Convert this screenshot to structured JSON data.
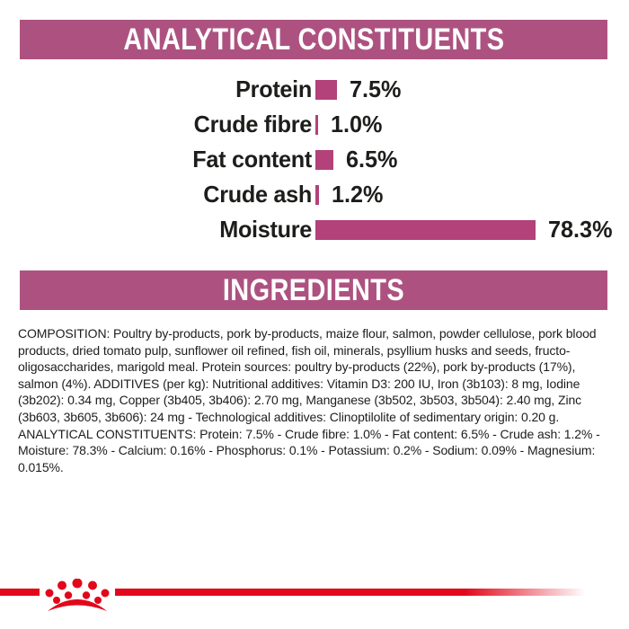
{
  "colors": {
    "header_bg": "#ad5280",
    "bar_fill": "#b24279",
    "brand_red": "#e2071a",
    "text": "#1d1d1b"
  },
  "analytical_section": {
    "title": "ANALYTICAL CONSTITUENTS",
    "chart_data": {
      "type": "bar",
      "orientation": "horizontal",
      "categories": [
        "Protein",
        "Crude fibre",
        "Fat content",
        "Crude ash",
        "Moisture"
      ],
      "values": [
        7.5,
        1.0,
        6.5,
        1.2,
        78.3
      ],
      "value_labels": [
        "7.5%",
        "1.0%",
        "6.5%",
        "1.2%",
        "78.3%"
      ],
      "unit": "%",
      "xlim": [
        0,
        78.3
      ],
      "bar_color": "#b24279",
      "title": "ANALYTICAL CONSTITUENTS",
      "legend": "none",
      "grid": false
    }
  },
  "ingredients_section": {
    "title": "INGREDIENTS",
    "body": "COMPOSITION: Poultry by-products, pork by-products, maize flour, salmon, powder cellulose, pork blood products, dried tomato pulp, sunflower oil refined, fish oil, minerals, psyllium husks and seeds, fructo-oligosaccharides, marigold meal. Protein sources: poultry by-products (22%), pork by-products (17%), salmon (4%). ADDITIVES (per kg): Nutritional additives: Vitamin D3: 200 IU, Iron (3b103): 8 mg, Iodine (3b202): 0.34 mg, Copper (3b405, 3b406): 2.70 mg, Manganese (3b502, 3b503, 3b504): 2.40 mg, Zinc (3b603, 3b605, 3b606): 24 mg - Technological additives: Clinoptilolite of sedimentary origin: 0.20 g. ANALYTICAL CONSTITUENTS: Protein: 7.5% - Crude fibre: 1.0% - Fat content: 6.5% - Crude ash: 1.2% - Moisture: 78.3% - Calcium: 0.16% - Phosphorus: 0.1% - Potassium: 0.2% - Sodium: 0.09% - Magnesium: 0.015%."
  },
  "footer": {
    "logo": "royal-canin-crown"
  }
}
